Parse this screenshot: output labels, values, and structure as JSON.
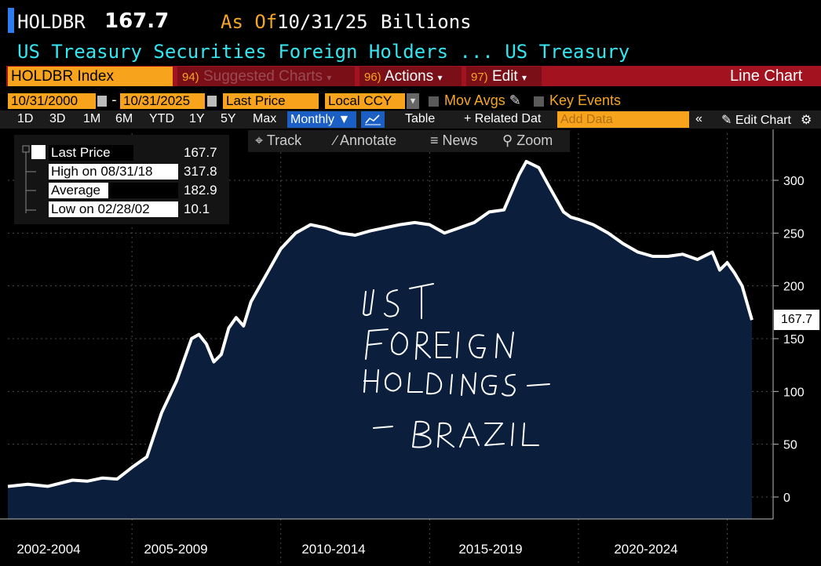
{
  "header": {
    "ticker": "HOLDBR",
    "price": "167.7",
    "asof_label": "As Of",
    "asof_date": "10/31/25",
    "units": "Billions",
    "subtitle": "US Treasury Securities Foreign Holders ... US Treasury"
  },
  "toolbar": {
    "index": "HOLDBR Index",
    "suggested_num": "94)",
    "suggested": "Suggested Charts",
    "actions_num": "96)",
    "actions": "Actions",
    "edit_num": "97)",
    "edit": "Edit",
    "chart_type": "Line Chart"
  },
  "controls": {
    "start_date": "10/31/2000",
    "end_date": "10/31/2025",
    "dash": "-",
    "field": "Last Price",
    "currency": "Local CCY",
    "mov_avgs": "Mov Avgs",
    "key_events": "Key Events",
    "periods": [
      "1D",
      "3D",
      "1M",
      "6M",
      "YTD",
      "1Y",
      "5Y",
      "Max"
    ],
    "frequency": "Monthly",
    "table": "Table",
    "related": "+ Related Dat",
    "add_data_placeholder": "Add Data",
    "edit_chart": "Edit Chart"
  },
  "tools": {
    "track": "Track",
    "annotate": "Annotate",
    "news": "News",
    "zoom": "Zoom"
  },
  "legend": {
    "last_price_label": "Last Price",
    "last_price": "167.7",
    "high_label": "High on 08/31/18",
    "high": "317.8",
    "average_label": "Average",
    "average": "182.9",
    "low_label": "Low on 02/28/02",
    "low": "10.1"
  },
  "annotation": [
    "UST",
    "FOREIGN",
    "HOLDINGS -",
    "- BRAZIL"
  ],
  "colors": {
    "accent": "#f7a31c",
    "toolbar_red": "#a3131f",
    "area_fill": "#0b1f3d",
    "line": "#ffffff",
    "subtitle": "#34e6f0"
  },
  "chart_data": {
    "type": "area",
    "ylim": [
      -20,
      340
    ],
    "yticks": [
      0,
      50,
      100,
      150,
      200,
      250,
      300
    ],
    "period_labels": [
      "2002-2004",
      "2005-2009",
      "2010-2014",
      "2015-2019",
      "2020-2024"
    ],
    "last_value": "167.7",
    "series": [
      {
        "x": [
          2000.83,
          2001.5,
          2002.17,
          2003.0,
          2003.5,
          2004.0,
          2004.5,
          2005.0,
          2005.5,
          2006.0,
          2006.5,
          2007.0,
          2007.25,
          2007.5,
          2007.75,
          2008.0,
          2008.25,
          2008.5,
          2008.75,
          2009.0,
          2009.5,
          2010.0,
          2010.5,
          2011.0,
          2011.5,
          2012.0,
          2012.5,
          2013.0,
          2013.5,
          2014.0,
          2014.5,
          2015.0,
          2015.5,
          2016.0,
          2016.5,
          2017.0,
          2017.5,
          2018.0,
          2018.25,
          2018.67,
          2019.0,
          2019.5,
          2019.75,
          2020.0,
          2020.5,
          2021.0,
          2021.5,
          2022.0,
          2022.5,
          2023.0,
          2023.5,
          2024.0,
          2024.5,
          2024.75,
          2025.0,
          2025.25,
          2025.5,
          2025.83
        ],
        "values": [
          10,
          12,
          10.1,
          16,
          15,
          18,
          17,
          28,
          38,
          80,
          110,
          150,
          154,
          145,
          128,
          135,
          160,
          170,
          162,
          185,
          210,
          235,
          250,
          258,
          255,
          250,
          248,
          252,
          255,
          258,
          260,
          258,
          250,
          255,
          260,
          270,
          272,
          305,
          317.8,
          312,
          295,
          270,
          265,
          263,
          258,
          250,
          240,
          232,
          228,
          228,
          230,
          225,
          232,
          215,
          222,
          212,
          200,
          167.7
        ]
      }
    ]
  }
}
